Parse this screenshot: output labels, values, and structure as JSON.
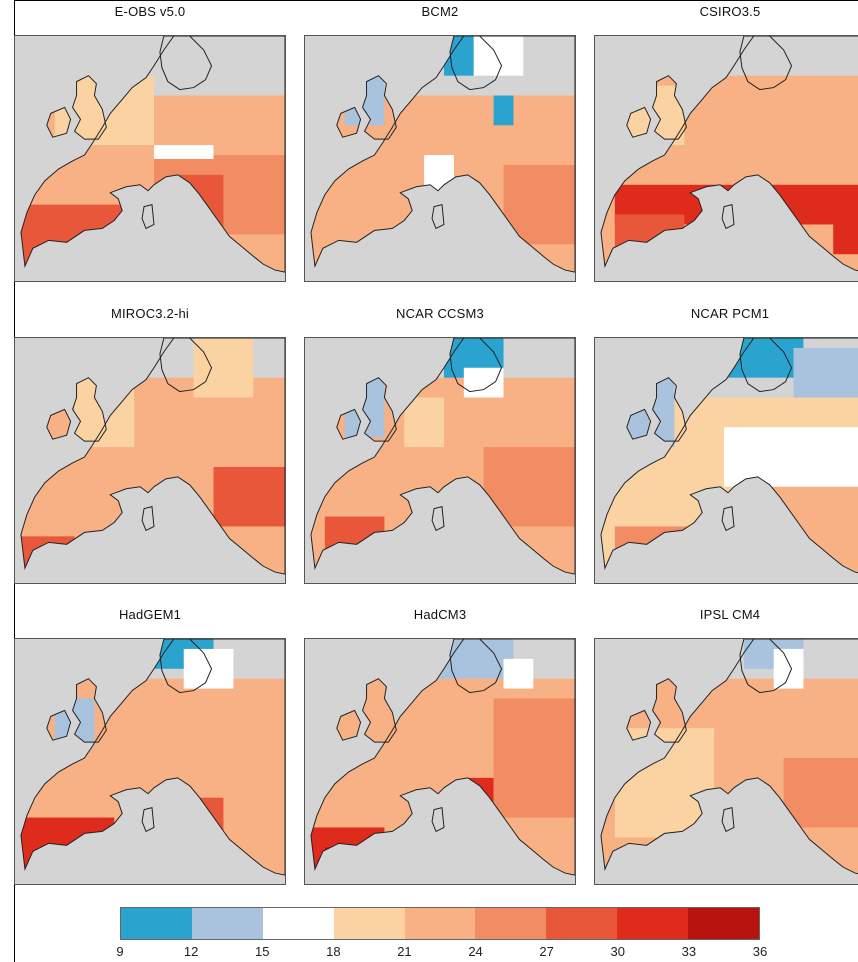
{
  "panels": [
    {
      "title": "E-OBS v5.0"
    },
    {
      "title": "BCM2"
    },
    {
      "title": "CSIRO3.5"
    },
    {
      "title": "MIROC3.2-hi"
    },
    {
      "title": "NCAR CCSM3"
    },
    {
      "title": "NCAR PCM1"
    },
    {
      "title": "HadGEM1"
    },
    {
      "title": "HadCM3"
    },
    {
      "title": "IPSL CM4"
    }
  ],
  "colorbar": {
    "ticks": [
      "9",
      "12",
      "15",
      "18",
      "21",
      "24",
      "27",
      "30",
      "33",
      "36"
    ],
    "colors": [
      "#2aa3cf",
      "#a9c3df",
      "#ffffff",
      "#fbd3a2",
      "#f7b184",
      "#f28c63",
      "#e9573a",
      "#de2b1c",
      "#b71410"
    ],
    "land_colour": "#d4d4d4"
  }
}
